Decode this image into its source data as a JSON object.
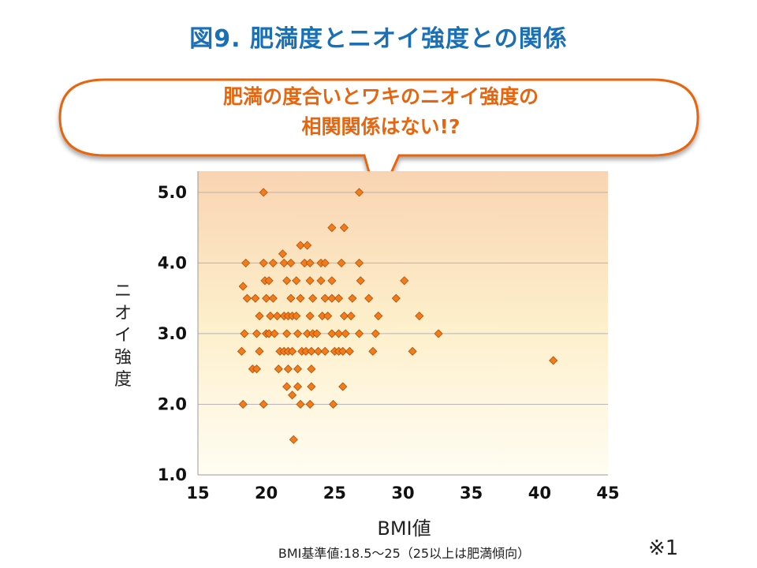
{
  "title": "図9. 肥満度とニオイ強度との関係",
  "callout": {
    "line1": "肥満の度合いとワキのニオイ強度の",
    "line2": "相関関係はない!?"
  },
  "axis": {
    "ylabel_chars": [
      "ニ",
      "オ",
      "イ",
      "強",
      "度"
    ],
    "xlabel": "BMI値",
    "footnote": "BMI基準値:18.5～25（25以上は肥満傾向）",
    "note_mark": "※1"
  },
  "colors": {
    "title": "#1a6fb5",
    "callout_text": "#e8650f",
    "callout_border": "#e8650f",
    "marker_fill": "#f07d1a",
    "marker_stroke": "#b84c06",
    "plot_bg_top": "#f9d4b2",
    "plot_bg_bottom": "#fffdf2",
    "gridline": "#b5b5b5"
  },
  "chart_data": {
    "type": "scatter",
    "xlabel": "BMI値",
    "ylabel": "ニオイ強度",
    "xlim": [
      15,
      45
    ],
    "ylim": [
      1.0,
      5.3
    ],
    "xticks": [
      15,
      20,
      25,
      30,
      35,
      40,
      45
    ],
    "yticks": [
      1.0,
      2.0,
      3.0,
      4.0,
      5.0
    ],
    "ytick_labels": [
      "1.0",
      "2.0",
      "3.0",
      "4.0",
      "5.0"
    ],
    "grid": true,
    "legend": "none",
    "points": [
      [
        19.8,
        5.0
      ],
      [
        26.8,
        5.0
      ],
      [
        24.8,
        4.5
      ],
      [
        25.7,
        4.5
      ],
      [
        22.5,
        4.25
      ],
      [
        23.0,
        4.25
      ],
      [
        21.2,
        4.13
      ],
      [
        18.5,
        4.0
      ],
      [
        19.8,
        4.0
      ],
      [
        20.5,
        4.0
      ],
      [
        21.3,
        4.0
      ],
      [
        21.8,
        4.0
      ],
      [
        22.8,
        4.0
      ],
      [
        23.2,
        4.0
      ],
      [
        24.0,
        4.0
      ],
      [
        24.3,
        4.0
      ],
      [
        25.5,
        4.0
      ],
      [
        26.8,
        4.0
      ],
      [
        19.9,
        3.75
      ],
      [
        20.2,
        3.75
      ],
      [
        21.5,
        3.75
      ],
      [
        22.2,
        3.75
      ],
      [
        23.2,
        3.75
      ],
      [
        24.0,
        3.75
      ],
      [
        24.8,
        3.75
      ],
      [
        26.9,
        3.75
      ],
      [
        30.1,
        3.75
      ],
      [
        18.3,
        3.67
      ],
      [
        18.6,
        3.5
      ],
      [
        19.2,
        3.5
      ],
      [
        20.0,
        3.5
      ],
      [
        20.5,
        3.5
      ],
      [
        21.8,
        3.5
      ],
      [
        22.5,
        3.5
      ],
      [
        23.4,
        3.5
      ],
      [
        24.3,
        3.5
      ],
      [
        24.8,
        3.5
      ],
      [
        25.3,
        3.5
      ],
      [
        26.3,
        3.5
      ],
      [
        27.5,
        3.5
      ],
      [
        29.5,
        3.5
      ],
      [
        19.5,
        3.25
      ],
      [
        20.3,
        3.25
      ],
      [
        20.8,
        3.25
      ],
      [
        21.3,
        3.25
      ],
      [
        21.6,
        3.25
      ],
      [
        21.9,
        3.25
      ],
      [
        22.2,
        3.25
      ],
      [
        23.2,
        3.25
      ],
      [
        24.1,
        3.25
      ],
      [
        24.5,
        3.25
      ],
      [
        25.7,
        3.25
      ],
      [
        26.2,
        3.25
      ],
      [
        28.2,
        3.25
      ],
      [
        31.2,
        3.25
      ],
      [
        18.4,
        3.0
      ],
      [
        19.3,
        3.0
      ],
      [
        20.0,
        3.0
      ],
      [
        20.2,
        3.0
      ],
      [
        20.6,
        3.0
      ],
      [
        21.5,
        3.0
      ],
      [
        22.3,
        3.0
      ],
      [
        23.0,
        3.0
      ],
      [
        23.4,
        3.0
      ],
      [
        23.7,
        3.0
      ],
      [
        24.8,
        3.0
      ],
      [
        25.3,
        3.0
      ],
      [
        25.8,
        3.0
      ],
      [
        26.8,
        3.0
      ],
      [
        28.0,
        3.0
      ],
      [
        32.6,
        3.0
      ],
      [
        18.2,
        2.75
      ],
      [
        19.5,
        2.75
      ],
      [
        21.0,
        2.75
      ],
      [
        21.3,
        2.75
      ],
      [
        21.6,
        2.75
      ],
      [
        21.9,
        2.75
      ],
      [
        22.6,
        2.75
      ],
      [
        22.9,
        2.75
      ],
      [
        23.3,
        2.75
      ],
      [
        23.8,
        2.75
      ],
      [
        24.3,
        2.75
      ],
      [
        25.0,
        2.75
      ],
      [
        25.3,
        2.75
      ],
      [
        25.6,
        2.75
      ],
      [
        26.1,
        2.75
      ],
      [
        27.8,
        2.75
      ],
      [
        30.7,
        2.75
      ],
      [
        41.0,
        2.62
      ],
      [
        19.0,
        2.5
      ],
      [
        19.3,
        2.5
      ],
      [
        20.9,
        2.5
      ],
      [
        21.6,
        2.5
      ],
      [
        22.3,
        2.5
      ],
      [
        23.3,
        2.5
      ],
      [
        21.5,
        2.25
      ],
      [
        22.3,
        2.25
      ],
      [
        23.3,
        2.25
      ],
      [
        25.6,
        2.25
      ],
      [
        21.9,
        2.13
      ],
      [
        18.3,
        2.0
      ],
      [
        19.8,
        2.0
      ],
      [
        22.5,
        2.0
      ],
      [
        23.2,
        2.0
      ],
      [
        24.9,
        2.0
      ],
      [
        22.0,
        1.5
      ]
    ]
  }
}
